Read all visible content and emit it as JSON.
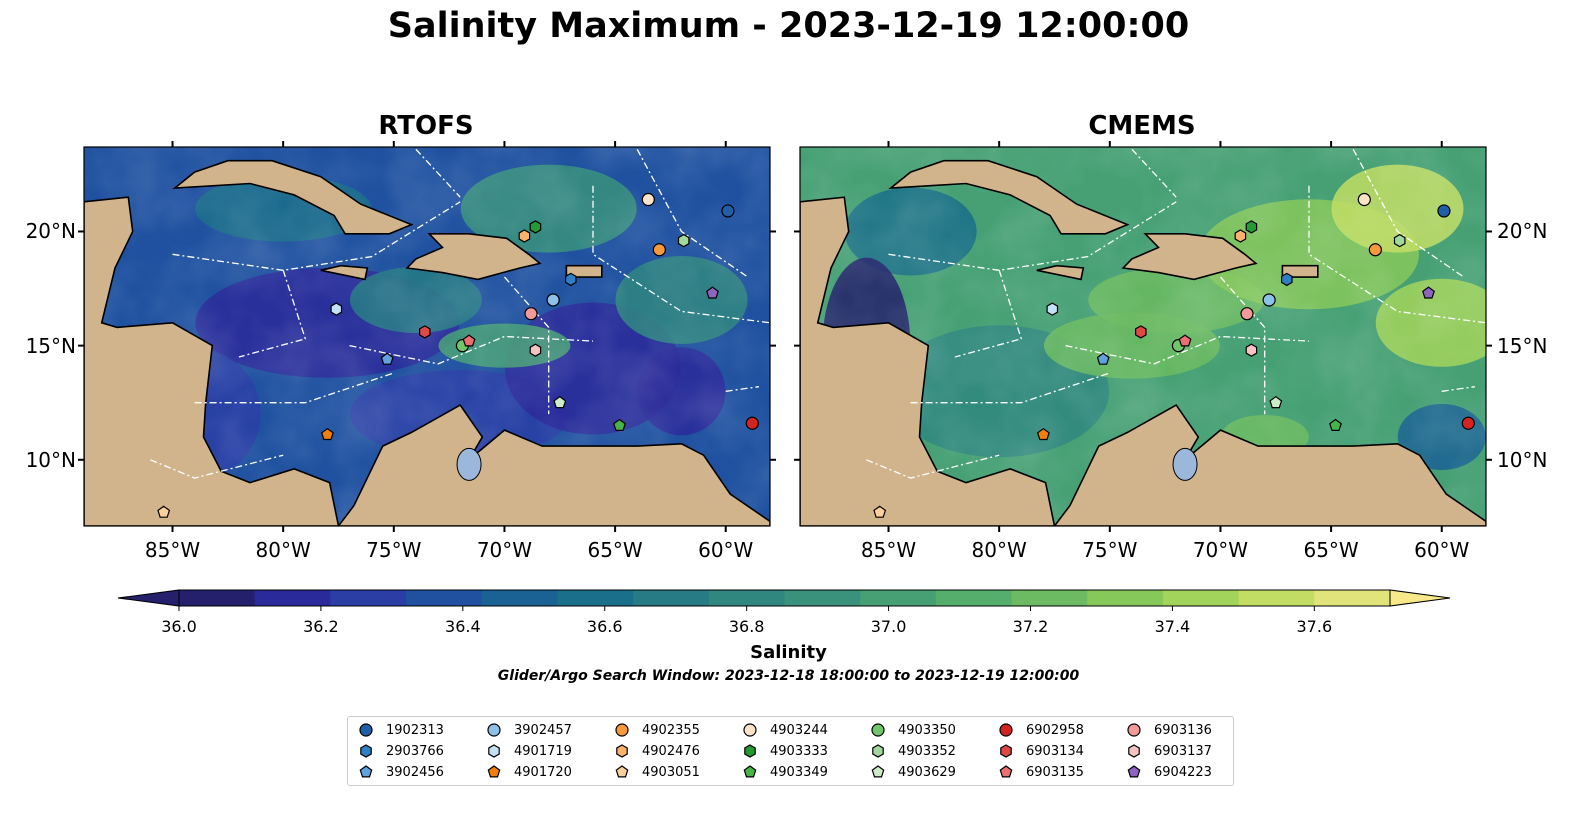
{
  "title": "Salinity Maximum - 2023-12-19 12:00:00",
  "panels": [
    {
      "name": "RTOFS",
      "palette": "low"
    },
    {
      "name": "CMEMS",
      "palette": "high"
    }
  ],
  "lon_ticks": [
    "85°W",
    "80°W",
    "75°W",
    "70°W",
    "65°W",
    "60°W"
  ],
  "lat_ticks": [
    "20°N",
    "15°N",
    "10°N"
  ],
  "colorbar": {
    "label": "Salinity",
    "ticks": [
      "36.0",
      "36.2",
      "36.4",
      "36.6",
      "36.8",
      "37.0",
      "37.2",
      "37.4",
      "37.6"
    ],
    "min": 36.0,
    "max": 37.6,
    "step": 0.1,
    "colors": [
      "#25206b",
      "#2b2a9a",
      "#2a3ea6",
      "#1f51a0",
      "#1a6294",
      "#1a6f8a",
      "#267b84",
      "#308780",
      "#3a927c",
      "#46a074",
      "#56ae6c",
      "#6cbb62",
      "#86c85a",
      "#a2d35a",
      "#c2dd64",
      "#e1e47a",
      "#f7e98a"
    ]
  },
  "subtitle": "Glider/Argo Search Window: 2023-12-18 18:00:00 to 2023-12-19 12:00:00",
  "legend": [
    {
      "id": "1902313",
      "marker": "circle",
      "color": "#1f5fa8"
    },
    {
      "id": "2903766",
      "marker": "hexagon",
      "color": "#2f7fc4"
    },
    {
      "id": "3902456",
      "marker": "pentagon",
      "color": "#5fa2dd"
    },
    {
      "id": "3902457",
      "marker": "circle",
      "color": "#8ec1ea"
    },
    {
      "id": "4901719",
      "marker": "hexagon",
      "color": "#c4e0f4"
    },
    {
      "id": "4901720",
      "marker": "pentagon",
      "color": "#f07f0c"
    },
    {
      "id": "4902355",
      "marker": "circle",
      "color": "#f7993a"
    },
    {
      "id": "4902476",
      "marker": "hexagon",
      "color": "#fbb26c"
    },
    {
      "id": "4903051",
      "marker": "pentagon",
      "color": "#fcd09c"
    },
    {
      "id": "4903244",
      "marker": "circle",
      "color": "#fde3c8"
    },
    {
      "id": "4903333",
      "marker": "hexagon",
      "color": "#249a32"
    },
    {
      "id": "4903349",
      "marker": "pentagon",
      "color": "#47b545"
    },
    {
      "id": "4903350",
      "marker": "circle",
      "color": "#72c66a"
    },
    {
      "id": "4903352",
      "marker": "hexagon",
      "color": "#a2d99a"
    },
    {
      "id": "4903629",
      "marker": "pentagon",
      "color": "#cdecc6"
    },
    {
      "id": "6902958",
      "marker": "circle",
      "color": "#d42422"
    },
    {
      "id": "6903134",
      "marker": "hexagon",
      "color": "#e04846"
    },
    {
      "id": "6903135",
      "marker": "pentagon",
      "color": "#ea7071"
    },
    {
      "id": "6903136",
      "marker": "circle",
      "color": "#f29a9a"
    },
    {
      "id": "6903137",
      "marker": "hexagon",
      "color": "#f7c3c2"
    },
    {
      "id": "6904223",
      "marker": "pentagon",
      "color": "#8d64bf"
    }
  ]
}
